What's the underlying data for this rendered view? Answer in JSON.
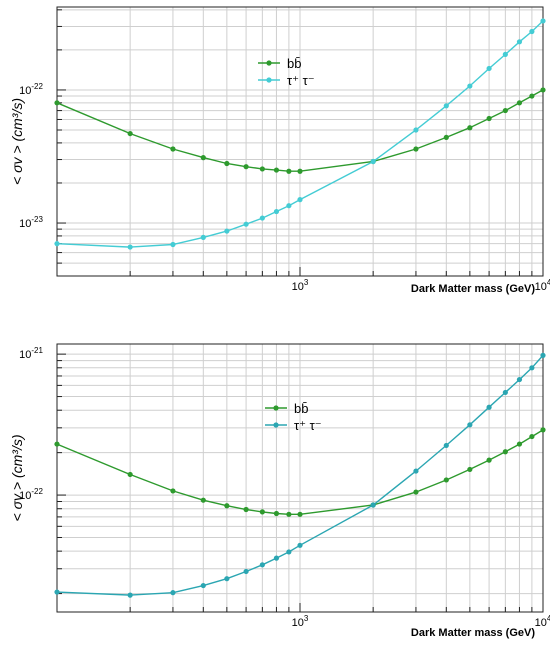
{
  "chart_data": [
    {
      "type": "line",
      "xscale": "log",
      "yscale": "log",
      "xlim": [
        100,
        10000
      ],
      "ylim": [
        4e-24,
        4.2e-22
      ],
      "grid": true,
      "legend_position": "top-center",
      "xlabel": "Dark Matter mass (GeV)",
      "ylabel": "< σv > (cm³/s)",
      "xticks": [
        {
          "value": 1000,
          "base": "10",
          "exp": "3"
        },
        {
          "value": 10000,
          "base": "10",
          "exp": "4"
        }
      ],
      "yticks": [
        {
          "value": 1e-23,
          "base": "10",
          "exp": "-23"
        },
        {
          "value": 1e-22,
          "base": "10",
          "exp": "-22"
        }
      ],
      "series": [
        {
          "name": "bb̄",
          "color": "#2e9a2e",
          "x": [
            100,
            200,
            300,
            400,
            500,
            600,
            700,
            800,
            900,
            1000,
            2000,
            3000,
            4000,
            5000,
            6000,
            7000,
            8000,
            9000,
            10000
          ],
          "y": [
            8e-23,
            4.7e-23,
            3.6e-23,
            3.1e-23,
            2.8e-23,
            2.65e-23,
            2.55e-23,
            2.5e-23,
            2.45e-23,
            2.45e-23,
            2.9e-23,
            3.6e-23,
            4.4e-23,
            5.2e-23,
            6.1e-23,
            7e-23,
            8e-23,
            9e-23,
            1e-22
          ]
        },
        {
          "name": "τ⁺ τ⁻",
          "color": "#44ccd4",
          "x": [
            100,
            200,
            300,
            400,
            500,
            600,
            700,
            800,
            900,
            1000,
            2000,
            3000,
            4000,
            5000,
            6000,
            7000,
            8000,
            9000,
            10000
          ],
          "y": [
            7e-24,
            6.6e-24,
            6.9e-24,
            7.8e-24,
            8.7e-24,
            9.8e-24,
            1.09e-23,
            1.22e-23,
            1.35e-23,
            1.5e-23,
            2.9e-23,
            5e-23,
            7.6e-23,
            1.07e-22,
            1.45e-22,
            1.85e-22,
            2.3e-22,
            2.75e-22,
            3.3e-22
          ]
        }
      ]
    },
    {
      "type": "line",
      "xscale": "log",
      "yscale": "log",
      "xlim": [
        100,
        10000
      ],
      "ylim": [
        1.48e-23,
        1.18e-21
      ],
      "grid": true,
      "legend_position": "top-center",
      "xlabel": "Dark Matter mass (GeV)",
      "ylabel": "< σv > (cm³/s)",
      "xticks": [
        {
          "value": 1000,
          "base": "10",
          "exp": "3"
        },
        {
          "value": 10000,
          "base": "10",
          "exp": "4"
        }
      ],
      "yticks": [
        {
          "value": 1e-22,
          "base": "10",
          "exp": "-22"
        },
        {
          "value": 1e-21,
          "base": "10",
          "exp": "-21"
        }
      ],
      "series": [
        {
          "name": "bb̄",
          "color": "#2e9a2e",
          "x": [
            100,
            200,
            300,
            400,
            500,
            600,
            700,
            800,
            900,
            1000,
            2000,
            3000,
            4000,
            5000,
            6000,
            7000,
            8000,
            9000,
            10000
          ],
          "y": [
            2.3e-22,
            1.4e-22,
            1.07e-22,
            9.2e-23,
            8.4e-23,
            7.9e-23,
            7.6e-23,
            7.4e-23,
            7.3e-23,
            7.3e-23,
            8.5e-23,
            1.05e-22,
            1.28e-22,
            1.52e-22,
            1.77e-22,
            2.03e-22,
            2.3e-22,
            2.6e-22,
            2.9e-22
          ]
        },
        {
          "name": "τ⁺ τ⁻",
          "color": "#2ba6b2",
          "x": [
            100,
            200,
            300,
            400,
            500,
            600,
            700,
            800,
            900,
            1000,
            2000,
            3000,
            4000,
            5000,
            6000,
            7000,
            8000,
            9000,
            10000
          ],
          "y": [
            2.05e-23,
            1.95e-23,
            2.03e-23,
            2.28e-23,
            2.55e-23,
            2.87e-23,
            3.2e-23,
            3.57e-23,
            3.95e-23,
            4.4e-23,
            8.5e-23,
            1.48e-22,
            2.25e-22,
            3.15e-22,
            4.2e-22,
            5.35e-22,
            6.6e-22,
            8e-22,
            9.8e-22
          ]
        }
      ]
    }
  ]
}
